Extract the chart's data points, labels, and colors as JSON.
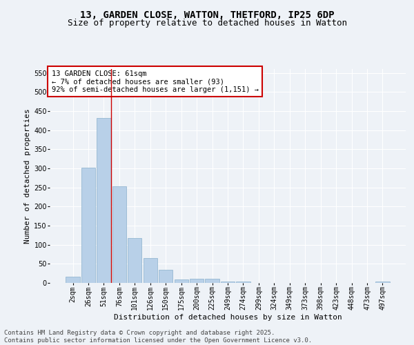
{
  "title_line1": "13, GARDEN CLOSE, WATTON, THETFORD, IP25 6DP",
  "title_line2": "Size of property relative to detached houses in Watton",
  "xlabel": "Distribution of detached houses by size in Watton",
  "ylabel": "Number of detached properties",
  "categories": [
    "2sqm",
    "26sqm",
    "51sqm",
    "76sqm",
    "101sqm",
    "126sqm",
    "150sqm",
    "175sqm",
    "200sqm",
    "225sqm",
    "249sqm",
    "274sqm",
    "299sqm",
    "324sqm",
    "349sqm",
    "373sqm",
    "398sqm",
    "423sqm",
    "448sqm",
    "473sqm",
    "497sqm"
  ],
  "values": [
    17,
    302,
    432,
    253,
    118,
    65,
    35,
    9,
    11,
    11,
    4,
    3,
    0,
    0,
    0,
    0,
    0,
    0,
    0,
    0,
    3
  ],
  "bar_color": "#b8d0e8",
  "bar_edge_color": "#8ab0cc",
  "vline_x_idx": 2,
  "vline_color": "#cc0000",
  "annotation_text": "13 GARDEN CLOSE: 61sqm\n← 7% of detached houses are smaller (93)\n92% of semi-detached houses are larger (1,151) →",
  "annotation_box_color": "#ffffff",
  "annotation_box_edge": "#cc0000",
  "ylim": [
    0,
    560
  ],
  "yticks": [
    0,
    50,
    100,
    150,
    200,
    250,
    300,
    350,
    400,
    450,
    500,
    550
  ],
  "background_color": "#eef2f7",
  "grid_color": "#ffffff",
  "footer_line1": "Contains HM Land Registry data © Crown copyright and database right 2025.",
  "footer_line2": "Contains public sector information licensed under the Open Government Licence v3.0.",
  "title_fontsize": 10,
  "subtitle_fontsize": 9,
  "axis_label_fontsize": 8,
  "tick_fontsize": 7,
  "annotation_fontsize": 7.5,
  "footer_fontsize": 6.5
}
